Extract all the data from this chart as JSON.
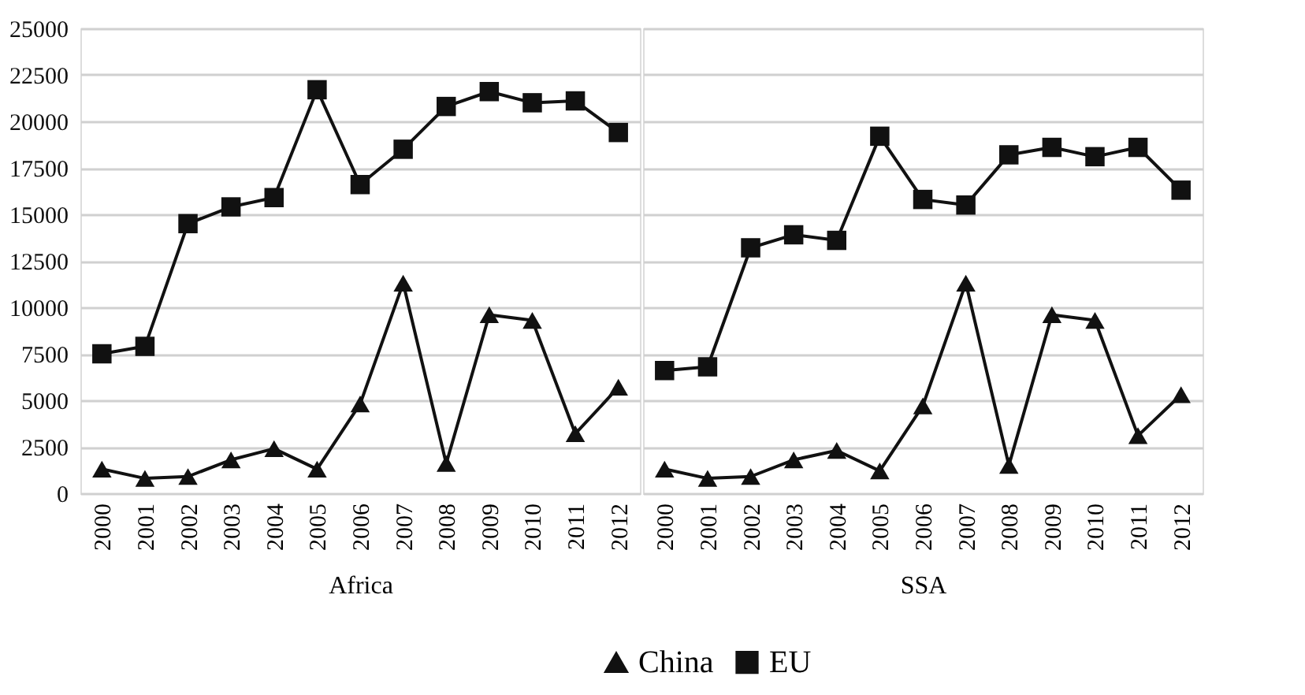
{
  "chart_data": [
    {
      "type": "line",
      "xlabel": "Africa",
      "categories": [
        "2000",
        "2001",
        "2002",
        "2003",
        "2004",
        "2005",
        "2006",
        "2007",
        "2008",
        "2009",
        "2010",
        "2011",
        "2012"
      ],
      "ylim": [
        0,
        25000
      ],
      "yticks": [
        0,
        2500,
        5000,
        7500,
        10000,
        12500,
        15000,
        17500,
        20000,
        22500,
        25000
      ],
      "grid": "y",
      "legend": "bottom",
      "line_style": "solid",
      "series": [
        {
          "name": "China",
          "color": "#111111",
          "marker": "triangle",
          "values": [
            1300,
            800,
            900,
            1800,
            2400,
            1300,
            4800,
            11300,
            1600,
            9600,
            9300,
            3200,
            5700
          ]
        },
        {
          "name": "EU",
          "color": "#111111",
          "marker": "square",
          "values": [
            7500,
            7900,
            14500,
            15400,
            15900,
            21700,
            16600,
            18500,
            20800,
            21600,
            21000,
            21100,
            19400
          ]
        }
      ]
    },
    {
      "type": "line",
      "xlabel": "SSA",
      "categories": [
        "2000",
        "2001",
        "2002",
        "2003",
        "2004",
        "2005",
        "2006",
        "2007",
        "2008",
        "2009",
        "2010",
        "2011",
        "2012"
      ],
      "ylim": [
        0,
        25000
      ],
      "yticks": [
        0,
        2500,
        5000,
        7500,
        10000,
        12500,
        15000,
        17500,
        20000,
        22500,
        25000
      ],
      "grid": "y",
      "legend": "bottom",
      "line_style": "solid",
      "tick_labels": "x",
      "series": [
        {
          "name": "China",
          "color": "#111111",
          "marker": "triangle",
          "values": [
            1300,
            800,
            900,
            1800,
            2300,
            1200,
            4700,
            11300,
            1500,
            9600,
            9300,
            3100,
            5300
          ]
        },
        {
          "name": "EU",
          "color": "#111111",
          "marker": "square",
          "values": [
            6600,
            6800,
            13200,
            13900,
            13600,
            19200,
            15800,
            15500,
            18200,
            18600,
            18100,
            18600,
            16300
          ]
        }
      ]
    }
  ]
}
